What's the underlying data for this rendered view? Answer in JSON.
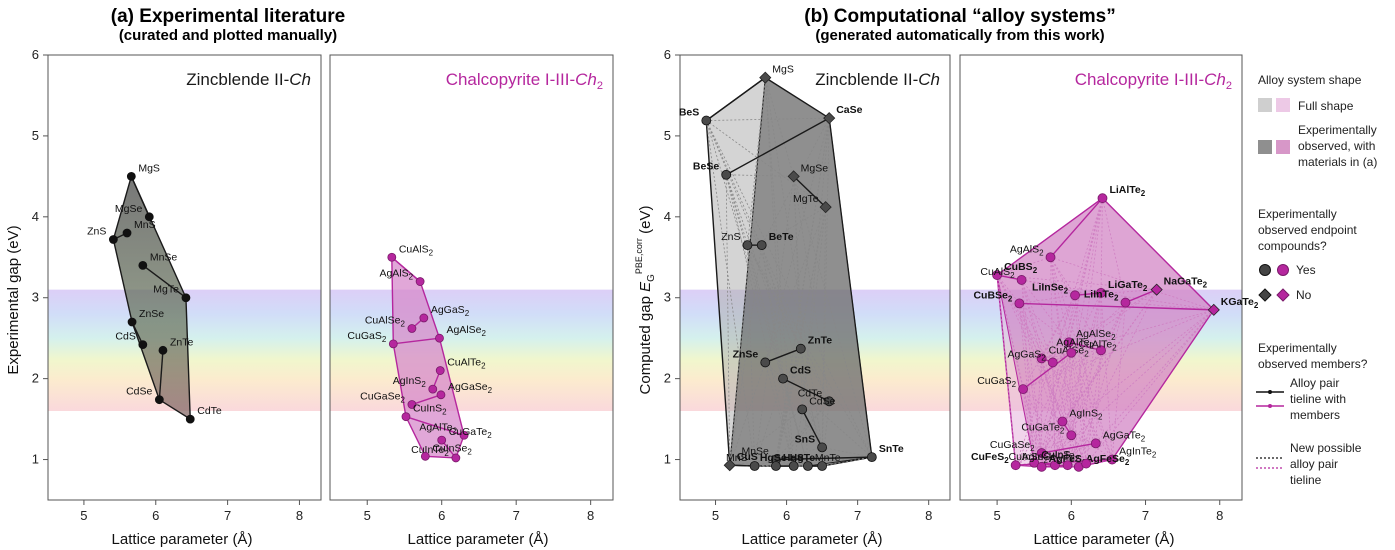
{
  "panel_a": {
    "title": "(a) Experimental literature",
    "subtitle": "(curated and plotted manually)",
    "left_label": "Zincblende II-Ch",
    "right_label": "Chalcopyrite I-III-Ch2",
    "ylabel": "Experimental gap (eV)",
    "xlabel": "Lattice parameter (Å)"
  },
  "panel_b": {
    "title": "(b) Computational “alloy systems”",
    "subtitle": "(generated automatically from this work)",
    "left_label": "Zincblende II-Ch",
    "right_label": "Chalcopyrite I-III-Ch2",
    "ylabel": "Computed gap E_G^PBE,corr (eV)",
    "xlabel": "Lattice parameter (Å)"
  },
  "legend": {
    "shape_title": "Alloy system shape",
    "full_shape": "Full shape",
    "observed_shape_1": "Experimentally",
    "observed_shape_2": "observed, with",
    "observed_shape_3": "materials in (a)",
    "endpoint_title_1": "Experimentally",
    "endpoint_title_2": "observed endpoint",
    "endpoint_title_3": "compounds?",
    "yes": "Yes",
    "no": "No",
    "members_title_1": "Experimentally",
    "members_title_2": "observed members?",
    "tieline_1": "Alloy pair",
    "tieline_2": "tieline with",
    "tieline_3": "members",
    "new_1": "New possible",
    "new_2": "alloy pair",
    "new_3": "tieline"
  },
  "colors": {
    "zincblende": "#1a1a1a",
    "chalcopyrite": "#b5279e",
    "grey_fill": "#9a9a9a",
    "pink_fill": "#d88ccb"
  },
  "chart_data": [
    {
      "type": "scatter",
      "panel": "a-zincblende",
      "xlim": [
        4.5,
        8.3
      ],
      "ylim": [
        0.5,
        6
      ],
      "xticks": [
        5,
        6,
        7,
        8
      ],
      "yticks": [
        1,
        2,
        3,
        4,
        5,
        6
      ],
      "points": [
        {
          "label": "MgS",
          "x": 5.66,
          "y": 4.5
        },
        {
          "label": "MgSe",
          "x": 5.91,
          "y": 4.0
        },
        {
          "label": "MnS",
          "x": 5.6,
          "y": 3.8
        },
        {
          "label": "ZnS",
          "x": 5.41,
          "y": 3.72
        },
        {
          "label": "MnSe",
          "x": 5.82,
          "y": 3.4
        },
        {
          "label": "MgTe",
          "x": 6.42,
          "y": 3.0
        },
        {
          "label": "ZnSe",
          "x": 5.67,
          "y": 2.7
        },
        {
          "label": "CdS",
          "x": 5.82,
          "y": 2.42
        },
        {
          "label": "ZnTe",
          "x": 6.1,
          "y": 2.35
        },
        {
          "label": "CdSe",
          "x": 6.05,
          "y": 1.74
        },
        {
          "label": "CdTe",
          "x": 6.48,
          "y": 1.5
        }
      ]
    },
    {
      "type": "scatter",
      "panel": "a-chalcopyrite",
      "xlim": [
        4.5,
        8.3
      ],
      "ylim": [
        0.5,
        6
      ],
      "xticks": [
        5,
        6,
        7,
        8
      ],
      "points": [
        {
          "label": "CuAlS2",
          "x": 5.33,
          "y": 3.5
        },
        {
          "label": "AgAlS2",
          "x": 5.71,
          "y": 3.2
        },
        {
          "label": "AgGaS2",
          "x": 5.76,
          "y": 2.75
        },
        {
          "label": "CuAlSe2",
          "x": 5.6,
          "y": 2.62
        },
        {
          "label": "AgAlSe2",
          "x": 5.97,
          "y": 2.5
        },
        {
          "label": "CuGaS2",
          "x": 5.35,
          "y": 2.43
        },
        {
          "label": "CuAlTe2",
          "x": 5.98,
          "y": 2.1
        },
        {
          "label": "AgInS2",
          "x": 5.88,
          "y": 1.87
        },
        {
          "label": "AgGaSe2",
          "x": 5.99,
          "y": 1.8
        },
        {
          "label": "CuGaSe2",
          "x": 5.6,
          "y": 1.68
        },
        {
          "label": "CuInS2",
          "x": 5.52,
          "y": 1.53
        },
        {
          "label": "AgAlTe2",
          "x": 6.3,
          "y": 1.3
        },
        {
          "label": "CuGaTe2",
          "x": 6.0,
          "y": 1.24
        },
        {
          "label": "CuInTe2",
          "x": 6.19,
          "y": 1.02
        },
        {
          "label": "CuInSe2",
          "x": 5.78,
          "y": 1.04
        }
      ]
    },
    {
      "type": "scatter",
      "panel": "b-zincblende",
      "xlim": [
        4.5,
        8.3
      ],
      "ylim": [
        0.5,
        6
      ],
      "xticks": [
        5,
        6,
        7,
        8
      ],
      "yticks": [
        1,
        2,
        3,
        4,
        5,
        6
      ],
      "points": [
        {
          "label": "MgS",
          "x": 5.7,
          "y": 5.72,
          "marker": "diamond"
        },
        {
          "label": "BeS",
          "x": 4.87,
          "y": 5.19
        },
        {
          "label": "CaSe",
          "x": 6.6,
          "y": 5.22,
          "marker": "diamond"
        },
        {
          "label": "BeSe",
          "x": 5.15,
          "y": 4.52
        },
        {
          "label": "MgSe",
          "x": 6.1,
          "y": 4.5,
          "marker": "diamond"
        },
        {
          "label": "MgTe",
          "x": 6.55,
          "y": 4.12,
          "marker": "diamond"
        },
        {
          "label": "BeTe",
          "x": 5.65,
          "y": 3.65
        },
        {
          "label": "ZnS",
          "x": 5.45,
          "y": 3.65
        },
        {
          "label": "ZnTe",
          "x": 6.2,
          "y": 2.37
        },
        {
          "label": "ZnSe",
          "x": 5.7,
          "y": 2.2
        },
        {
          "label": "CdS",
          "x": 5.95,
          "y": 2.0
        },
        {
          "label": "CdTe",
          "x": 6.6,
          "y": 1.72
        },
        {
          "label": "CdSe",
          "x": 6.22,
          "y": 1.62
        },
        {
          "label": "SnS",
          "x": 6.5,
          "y": 1.15
        },
        {
          "label": "SnTe",
          "x": 7.2,
          "y": 1.03
        },
        {
          "label": "MnSe",
          "x": 5.85,
          "y": 1.0
        },
        {
          "label": "CuS",
          "x": 5.2,
          "y": 0.93,
          "marker": "diamond"
        },
        {
          "label": "MnS",
          "x": 5.55,
          "y": 0.92
        },
        {
          "label": "HgS",
          "x": 5.85,
          "y": 0.92
        },
        {
          "label": "HgSe",
          "x": 6.1,
          "y": 0.92
        },
        {
          "label": "MnTe",
          "x": 6.3,
          "y": 0.92
        },
        {
          "label": "HgTe",
          "x": 6.5,
          "y": 0.92
        }
      ]
    },
    {
      "type": "scatter",
      "panel": "b-chalcopyrite",
      "xlim": [
        4.5,
        8.3
      ],
      "ylim": [
        0.5,
        6
      ],
      "xticks": [
        5,
        6,
        7,
        8
      ],
      "points": [
        {
          "label": "LiAlTe2",
          "x": 6.42,
          "y": 4.23
        },
        {
          "label": "AgAlS2",
          "x": 5.72,
          "y": 3.5
        },
        {
          "label": "CuBS2",
          "x": 5.0,
          "y": 3.28
        },
        {
          "label": "CuAlS2",
          "x": 5.33,
          "y": 3.22
        },
        {
          "label": "LiGaTe2",
          "x": 6.4,
          "y": 3.06
        },
        {
          "label": "LiInSe2",
          "x": 6.05,
          "y": 3.03
        },
        {
          "label": "NaGaTe2",
          "x": 7.15,
          "y": 3.1,
          "marker": "diamond"
        },
        {
          "label": "LiInTe2",
          "x": 6.73,
          "y": 2.94
        },
        {
          "label": "KGaTe2",
          "x": 7.92,
          "y": 2.85,
          "marker": "diamond"
        },
        {
          "label": "CuBSe2",
          "x": 5.3,
          "y": 2.93
        },
        {
          "label": "AgAlSe2",
          "x": 5.97,
          "y": 2.45
        },
        {
          "label": "AgAlTe2",
          "x": 6.4,
          "y": 2.35
        },
        {
          "label": "CuAlSe2",
          "x": 5.6,
          "y": 2.25
        },
        {
          "label": "AgGaS2",
          "x": 5.75,
          "y": 2.2
        },
        {
          "label": "CuAlTe2",
          "x": 6.0,
          "y": 2.32
        },
        {
          "label": "CuGaS2",
          "x": 5.35,
          "y": 1.87
        },
        {
          "label": "AgInS2",
          "x": 5.88,
          "y": 1.47
        },
        {
          "label": "CuGaTe2",
          "x": 6.0,
          "y": 1.3
        },
        {
          "label": "AgGaTe2",
          "x": 6.33,
          "y": 1.2
        },
        {
          "label": "CuGaSe2",
          "x": 5.6,
          "y": 1.08
        },
        {
          "label": "AgInTe2",
          "x": 6.55,
          "y": 1.0
        },
        {
          "label": "CuFeS2",
          "x": 5.25,
          "y": 0.93
        },
        {
          "label": "CuInS2",
          "x": 5.5,
          "y": 0.96
        },
        {
          "label": "CuInSe2",
          "x": 5.78,
          "y": 0.93
        },
        {
          "label": "AgFeS2",
          "x": 5.6,
          "y": 0.91
        },
        {
          "label": "AgInSe2",
          "x": 5.95,
          "y": 0.93
        },
        {
          "label": "AgFeSe2",
          "x": 6.1,
          "y": 0.91
        },
        {
          "label": "CuInTe2",
          "x": 6.2,
          "y": 0.95
        }
      ]
    }
  ]
}
